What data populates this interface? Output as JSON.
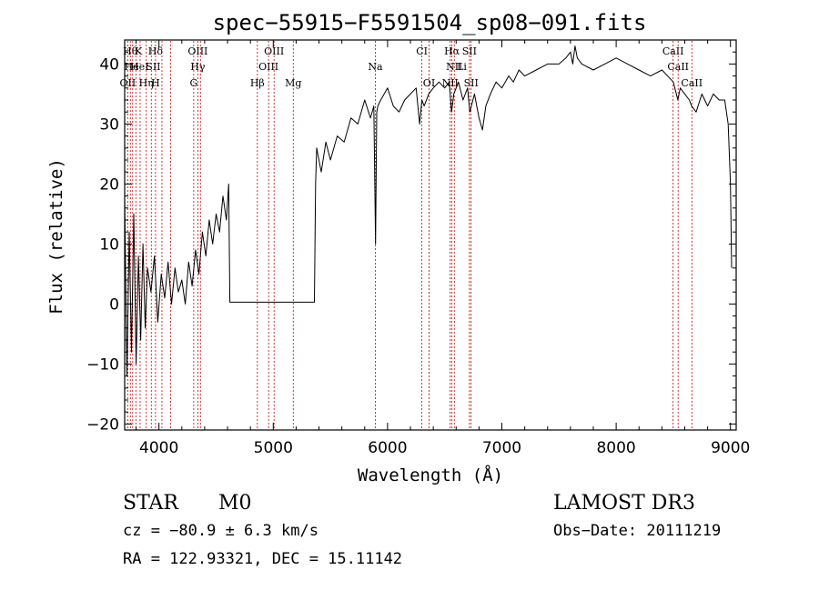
{
  "chart_data": {
    "type": "line",
    "title": "spec−55915−F5591504_sp08−091.fits",
    "xlabel": "Wavelength (Å)",
    "ylabel": "Flux (relative)",
    "xlim": [
      3700,
      9050
    ],
    "ylim": [
      -21,
      44
    ],
    "x_ticks": [
      4000,
      5000,
      6000,
      7000,
      8000,
      9000
    ],
    "x_tick_labels": [
      "4000",
      "5000",
      "6000",
      "7000",
      "8000",
      "9000"
    ],
    "y_ticks": [
      -20,
      -10,
      0,
      10,
      20,
      30,
      40
    ],
    "y_tick_labels": [
      "−20",
      "−10",
      "0",
      "10",
      "20",
      "30",
      "40"
    ],
    "grid": false,
    "line_color": "#000000",
    "marker_color": "#cc0000",
    "series": [
      {
        "x": [
          3700,
          3720,
          3740,
          3760,
          3780,
          3800,
          3820,
          3840,
          3860,
          3880,
          3900,
          3930,
          3960,
          3990,
          4020,
          4050,
          4080,
          4110,
          4140,
          4170,
          4200,
          4230,
          4260,
          4290,
          4320,
          4350,
          4380,
          4410,
          4440,
          4470,
          4500,
          4530,
          4560,
          4590,
          4610,
          4620,
          5000,
          5360,
          5370,
          5380,
          5420,
          5460,
          5500,
          5560,
          5620,
          5680,
          5740,
          5800,
          5850,
          5880,
          5895,
          5905,
          5915,
          5940,
          6000,
          6050,
          6100,
          6150,
          6200,
          6250,
          6280,
          6300,
          6320,
          6360,
          6400,
          6450,
          6500,
          6540,
          6560,
          6580,
          6620,
          6660,
          6700,
          6720,
          6760,
          6800,
          6830,
          6860,
          6900,
          6950,
          7000,
          7060,
          7100,
          7150,
          7200,
          7300,
          7400,
          7500,
          7560,
          7600,
          7620,
          7640,
          7660,
          7700,
          7800,
          7900,
          8000,
          8100,
          8200,
          8300,
          8400,
          8500,
          8540,
          8560,
          8600,
          8640,
          8660,
          8700,
          8750,
          8800,
          8850,
          8900,
          8950,
          8980,
          9000,
          9010
        ],
        "y": [
          18,
          -12,
          12,
          -8,
          15,
          -10,
          8,
          -6,
          10,
          -4,
          6,
          2,
          8,
          -3,
          5,
          1,
          7,
          0,
          6,
          2,
          4,
          0,
          7,
          3,
          9,
          5,
          12,
          8,
          14,
          10,
          15,
          12,
          18,
          14,
          20,
          0.3,
          0.3,
          0.3,
          20,
          26,
          22,
          27,
          24,
          28,
          27,
          31,
          30,
          34,
          31,
          33,
          10,
          32,
          33,
          34,
          36,
          33,
          32,
          34,
          35,
          36,
          30,
          34,
          33,
          35,
          36,
          37,
          36,
          37,
          32,
          35,
          37,
          34,
          36,
          32,
          35,
          31,
          29,
          33,
          35,
          37,
          36,
          38,
          37,
          39,
          38,
          39,
          40,
          40,
          41,
          42,
          40,
          43,
          41,
          40,
          39,
          40,
          41,
          40,
          39,
          38,
          39,
          37,
          34,
          36,
          35,
          34,
          33,
          32,
          35,
          33,
          35,
          34,
          34,
          30,
          20,
          6
        ]
      }
    ],
    "line_markers": [
      {
        "x": 3750,
        "label": "Hθ",
        "row": 0
      },
      {
        "x": 3820,
        "label": "K",
        "row": 0
      },
      {
        "x": 3970,
        "label": "Hδ",
        "row": 0
      },
      {
        "x": 4340,
        "label": "OIII",
        "row": 0
      },
      {
        "x": 5007,
        "label": "OIII",
        "row": 0
      },
      {
        "x": 6300,
        "label": "CI",
        "row": 0
      },
      {
        "x": 6563,
        "label": "Hα",
        "row": 0
      },
      {
        "x": 6716,
        "label": "SII",
        "row": 0
      },
      {
        "x": 8498,
        "label": "CaII",
        "row": 0
      },
      {
        "x": 3760,
        "label": "He",
        "row": 1
      },
      {
        "x": 3830,
        "label": "HeI",
        "row": 1
      },
      {
        "x": 3950,
        "label": "SII",
        "row": 1
      },
      {
        "x": 4340,
        "label": "Hγ",
        "row": 1
      },
      {
        "x": 4959,
        "label": "OIII",
        "row": 1
      },
      {
        "x": 5893,
        "label": "Na",
        "row": 1
      },
      {
        "x": 6584,
        "label": "NII",
        "row": 1
      },
      {
        "x": 6650,
        "label": "Li",
        "row": 1
      },
      {
        "x": 8542,
        "label": "CaII",
        "row": 1
      },
      {
        "x": 3727,
        "label": "OII",
        "row": 2
      },
      {
        "x": 3889,
        "label": "Hη",
        "row": 2
      },
      {
        "x": 3970,
        "label": "H",
        "row": 2
      },
      {
        "x": 4304,
        "label": "G",
        "row": 2
      },
      {
        "x": 4861,
        "label": "Hβ",
        "row": 2
      },
      {
        "x": 5175,
        "label": "Mg",
        "row": 2
      },
      {
        "x": 6363,
        "label": "OI",
        "row": 2
      },
      {
        "x": 6548,
        "label": "NII",
        "row": 2
      },
      {
        "x": 6731,
        "label": "SII",
        "row": 2
      },
      {
        "x": 8662,
        "label": "CaII",
        "row": 2
      }
    ],
    "dashed_lines_x": [
      3727,
      3750,
      3770,
      3798,
      3835,
      3889,
      3933,
      3970,
      4026,
      4101,
      4304,
      4340,
      4363,
      4861,
      4959,
      5007,
      5175,
      5893,
      6300,
      6363,
      6548,
      6563,
      6584,
      6716,
      6731,
      8498,
      8542,
      8662
    ]
  },
  "info": {
    "object_class": "STAR",
    "subclass": "M0",
    "survey": "LAMOST DR3",
    "cz": "cz = −80.9 ± 6.3 km/s",
    "obs_date": "Obs−Date: 20111219",
    "coords": "RA = 122.93321, DEC =  15.11142"
  }
}
